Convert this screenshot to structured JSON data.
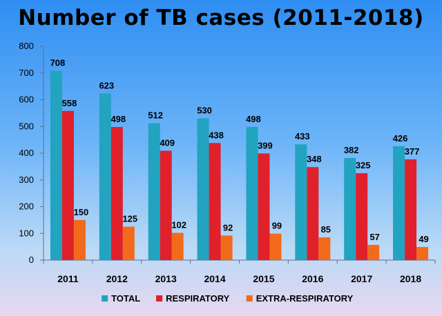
{
  "chart_data": {
    "type": "bar",
    "title": "Number of TB cases (2011-2018)",
    "categories": [
      "2011",
      "2012",
      "2013",
      "2014",
      "2015",
      "2016",
      "2017",
      "2018"
    ],
    "series": [
      {
        "name": "TOTAL",
        "color": "#22a3bf",
        "values": [
          708,
          623,
          512,
          530,
          498,
          433,
          382,
          426
        ]
      },
      {
        "name": "RESPIRATORY",
        "color": "#e0202b",
        "values": [
          558,
          498,
          409,
          438,
          399,
          348,
          325,
          377
        ]
      },
      {
        "name": "EXTRA-RESPIRATORY",
        "color": "#f26a1b",
        "values": [
          150,
          125,
          102,
          92,
          99,
          85,
          57,
          49
        ]
      }
    ],
    "ylim": [
      0,
      800
    ],
    "yticks": [
      0,
      100,
      200,
      300,
      400,
      500,
      600,
      700,
      800
    ],
    "xlabel": "",
    "ylabel": "",
    "grid": false,
    "legend": "bottom",
    "data_labels": true
  }
}
